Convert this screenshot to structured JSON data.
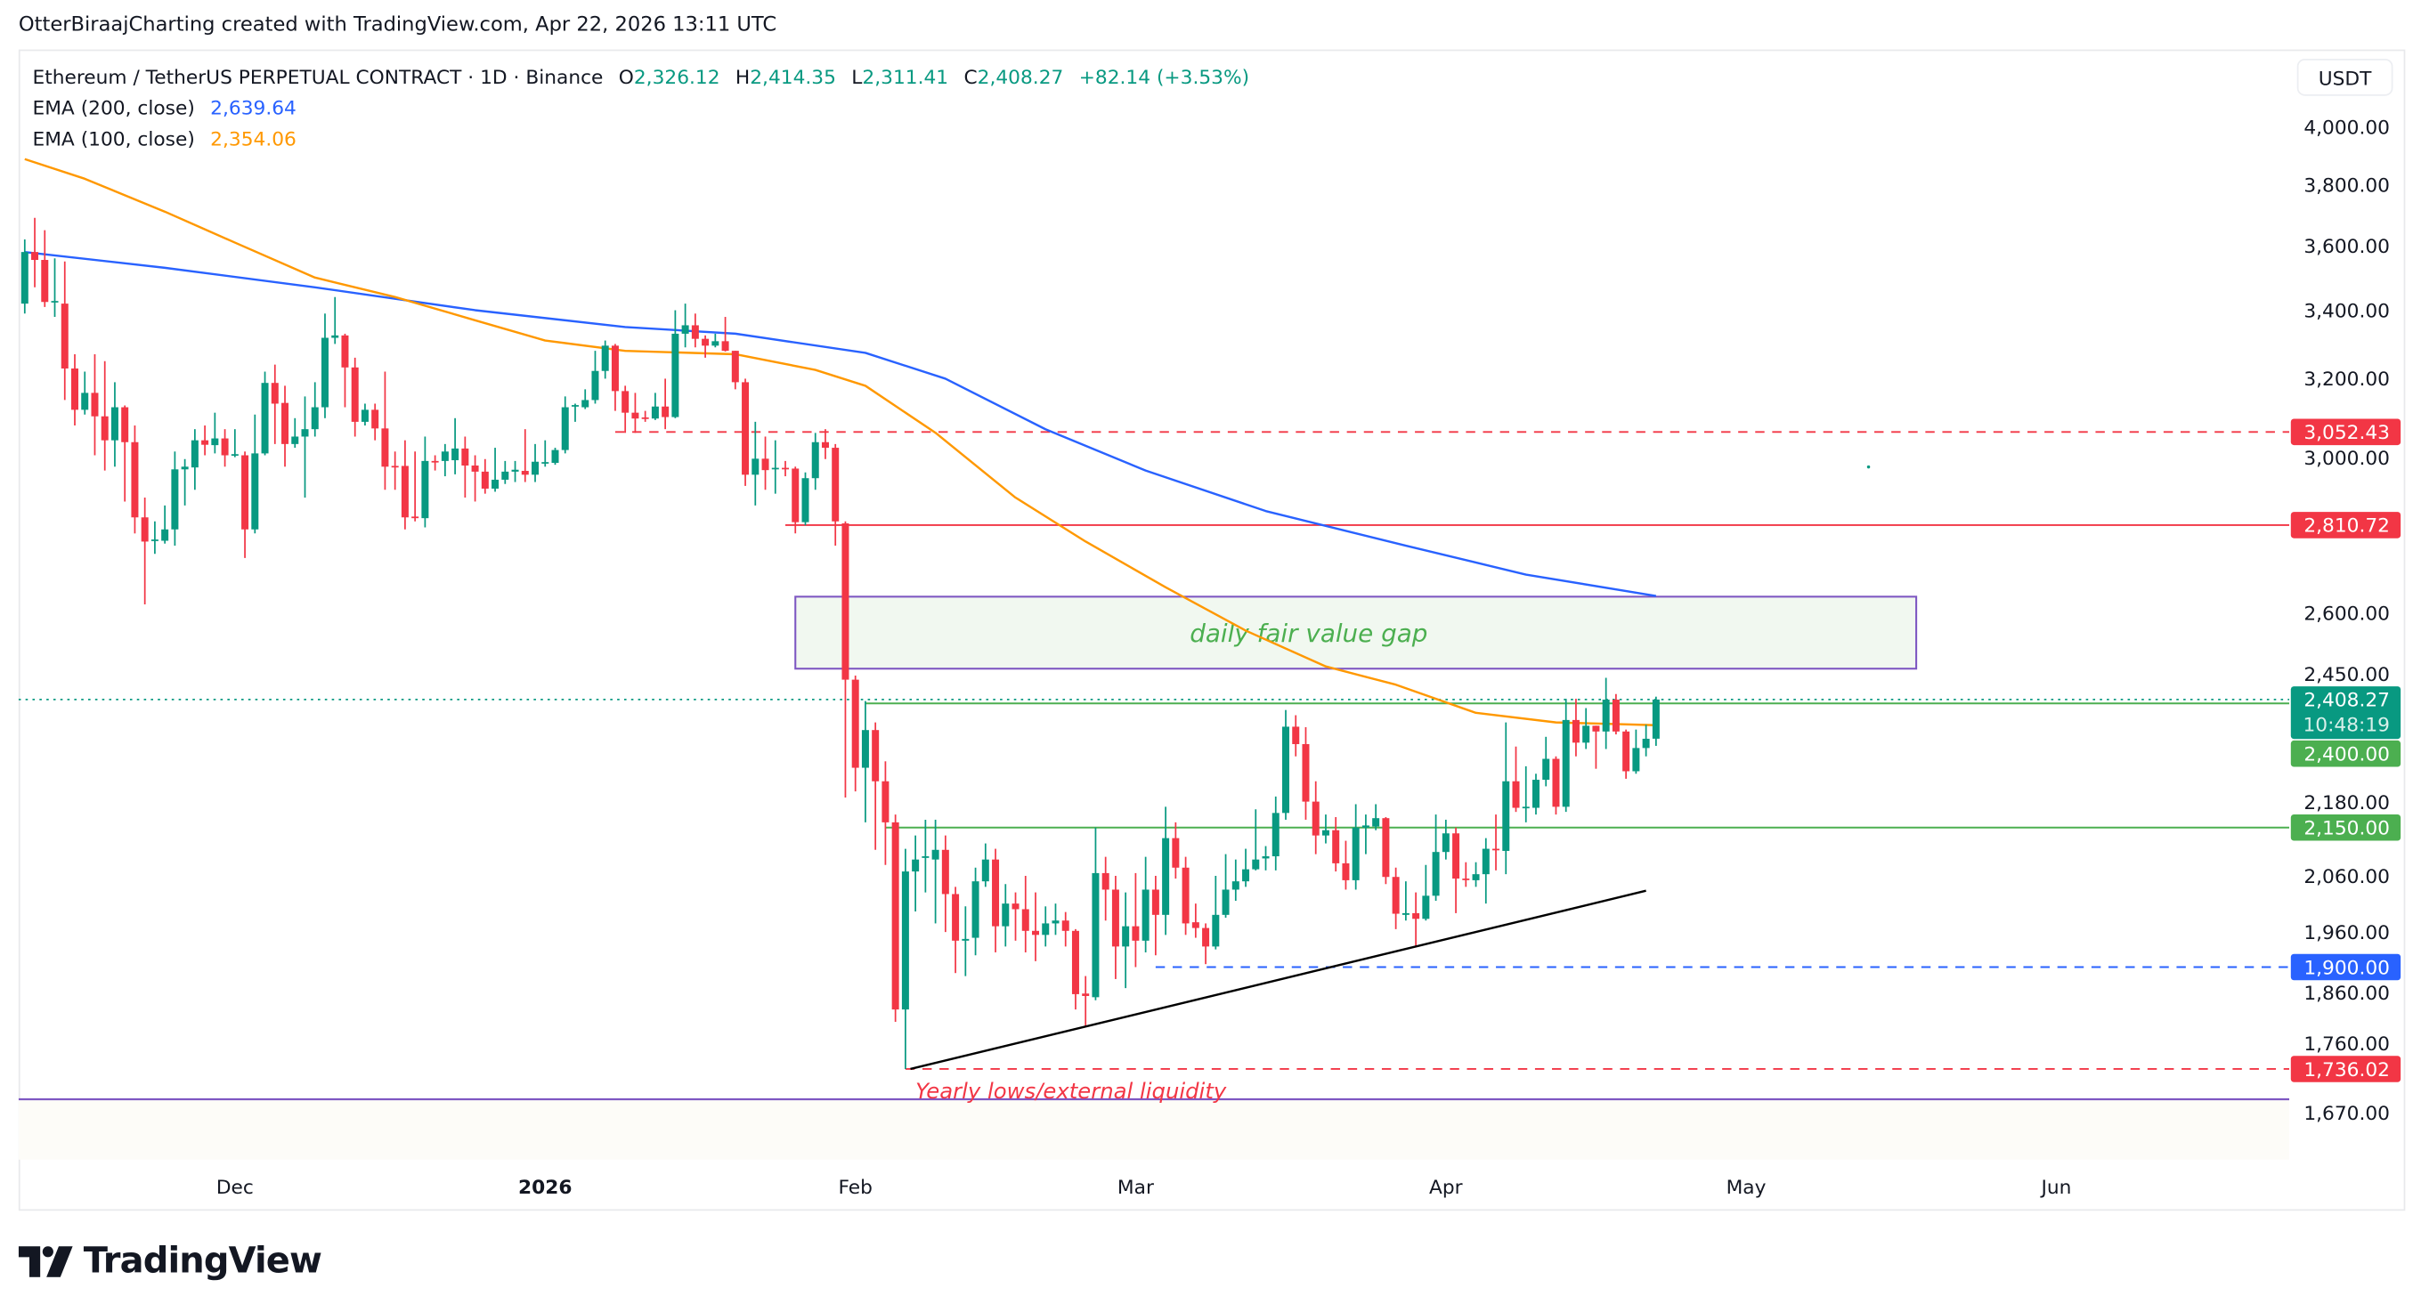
{
  "credit": "OtterBiraajCharting created with TradingView.com, Apr 22, 2026 13:11 UTC",
  "legend": {
    "symbol": "Ethereum / TetherUS PERPETUAL CONTRACT · 1D · Binance",
    "o_label": "O",
    "o": "2,326.12",
    "h_label": "H",
    "h": "2,414.35",
    "l_label": "L",
    "l": "2,311.41",
    "c_label": "C",
    "c": "2,408.27",
    "change": "+82.14 (+3.53%)",
    "ema200_label": "EMA (200, close)",
    "ema200_value": "2,639.64",
    "ema100_label": "EMA (100, close)",
    "ema100_value": "2,354.06"
  },
  "currency": "USDT",
  "logo_text": "TradingView",
  "colors": {
    "up": "#089981",
    "down": "#f23645",
    "ema200": "#2962ff",
    "ema100": "#ff9800",
    "fvg_border": "#7e57c2",
    "fvg_fill": "#f1f8f0",
    "fvg_text": "#4caf50",
    "level_green": "#4caf50",
    "level_red": "#f23645",
    "level_blue": "#2962ff"
  },
  "chart_data": {
    "type": "candlestick",
    "scale": "log",
    "ylim": [
      1670,
      4000
    ],
    "start_date": "2025-11-10",
    "end_date": "2026-04-22",
    "x_ticks": [
      {
        "label": "Dec",
        "day_index": 21,
        "bold": false
      },
      {
        "label": "2026",
        "day_index": 52,
        "bold": true
      },
      {
        "label": "Feb",
        "day_index": 83,
        "bold": false
      },
      {
        "label": "Mar",
        "day_index": 111,
        "bold": false
      },
      {
        "label": "Apr",
        "day_index": 142,
        "bold": false
      },
      {
        "label": "May",
        "day_index": 172,
        "bold": false
      },
      {
        "label": "Jun",
        "day_index": 203,
        "bold": false
      }
    ],
    "y_ticks": [
      {
        "value": 4000,
        "label": "4,000.00"
      },
      {
        "value": 3800,
        "label": "3,800.00"
      },
      {
        "value": 3600,
        "label": "3,600.00"
      },
      {
        "value": 3400,
        "label": "3,400.00"
      },
      {
        "value": 3200,
        "label": "3,200.00"
      },
      {
        "value": 3000,
        "label": "3,000.00"
      },
      {
        "value": 2600,
        "label": "2,600.00"
      },
      {
        "value": 2450,
        "label": "2,450.00"
      },
      {
        "value": 2180,
        "label": "2,180.00"
      },
      {
        "value": 2060,
        "label": "2,060.00"
      },
      {
        "value": 1960,
        "label": "1,960.00"
      },
      {
        "value": 1860,
        "label": "1,860.00"
      },
      {
        "value": 1760,
        "label": "1,760.00"
      },
      {
        "value": 1670,
        "label": "1,670.00"
      }
    ],
    "candles_ohlc": [
      [
        3420,
        3620,
        3390,
        3580
      ],
      [
        3580,
        3690,
        3470,
        3555
      ],
      [
        3555,
        3650,
        3410,
        3425
      ],
      [
        3425,
        3560,
        3380,
        3428
      ],
      [
        3420,
        3550,
        3140,
        3229
      ],
      [
        3229,
        3270,
        3070,
        3113
      ],
      [
        3113,
        3220,
        3100,
        3160
      ],
      [
        3160,
        3270,
        2990,
        3095
      ],
      [
        3095,
        3250,
        2950,
        3030
      ],
      [
        3030,
        3190,
        2960,
        3120
      ],
      [
        3120,
        3125,
        2870,
        3025
      ],
      [
        3025,
        3070,
        2790,
        2830
      ],
      [
        2830,
        2880,
        2620,
        2770
      ],
      [
        2772,
        2820,
        2740,
        2775
      ],
      [
        2772,
        2860,
        2765,
        2800
      ],
      [
        2800,
        3000,
        2760,
        2953
      ],
      [
        2953,
        2980,
        2860,
        2960
      ],
      [
        2958,
        3060,
        2900,
        3030
      ],
      [
        3030,
        3070,
        2990,
        3018
      ],
      [
        3017,
        3105,
        2995,
        3035
      ],
      [
        3035,
        3060,
        2960,
        2990
      ],
      [
        2990,
        3060,
        2985,
        2993
      ],
      [
        2990,
        3000,
        2730,
        2800
      ],
      [
        2800,
        3100,
        2790,
        2995
      ],
      [
        2995,
        3220,
        2990,
        3188
      ],
      [
        3188,
        3240,
        3020,
        3130
      ],
      [
        3132,
        3180,
        2960,
        3020
      ],
      [
        3020,
        3090,
        3010,
        3040
      ],
      [
        3040,
        3150,
        2880,
        3060
      ],
      [
        3060,
        3190,
        3040,
        3120
      ],
      [
        3120,
        3390,
        3090,
        3318
      ],
      [
        3318,
        3440,
        3300,
        3325
      ],
      [
        3325,
        3330,
        3120,
        3232
      ],
      [
        3232,
        3260,
        3040,
        3080
      ],
      [
        3080,
        3130,
        3070,
        3113
      ],
      [
        3113,
        3130,
        3030,
        3062
      ],
      [
        3062,
        3220,
        2900,
        2960
      ],
      [
        2962,
        3000,
        2900,
        2958
      ],
      [
        2962,
        3030,
        2800,
        2830
      ],
      [
        2832,
        3000,
        2820,
        2828
      ],
      [
        2828,
        3040,
        2805,
        2975
      ],
      [
        2975,
        2990,
        2950,
        2973
      ],
      [
        2975,
        3020,
        2935,
        3000
      ],
      [
        2977,
        3090,
        2940,
        3008
      ],
      [
        3008,
        3040,
        2880,
        2963
      ],
      [
        2963,
        2990,
        2870,
        2947
      ],
      [
        2947,
        2980,
        2890,
        2903
      ],
      [
        2903,
        3010,
        2895,
        2926
      ],
      [
        2926,
        2975,
        2915,
        2947
      ],
      [
        2947,
        2975,
        2920,
        2952
      ],
      [
        2949,
        3060,
        2920,
        2939
      ],
      [
        2939,
        3020,
        2920,
        2973
      ],
      [
        2970,
        3030,
        2960,
        2972
      ],
      [
        2970,
        3010,
        2965,
        3004
      ],
      [
        3004,
        3150,
        2995,
        3120
      ],
      [
        3122,
        3130,
        3080,
        3126
      ],
      [
        3120,
        3170,
        3115,
        3140
      ],
      [
        3140,
        3280,
        3130,
        3222
      ],
      [
        3222,
        3310,
        3200,
        3295
      ],
      [
        3295,
        3300,
        3110,
        3165
      ],
      [
        3165,
        3180,
        3050,
        3105
      ],
      [
        3105,
        3160,
        3050,
        3089
      ],
      [
        3092,
        3110,
        3080,
        3090
      ],
      [
        3089,
        3160,
        3085,
        3122
      ],
      [
        3122,
        3200,
        3060,
        3093
      ],
      [
        3093,
        3400,
        3090,
        3330
      ],
      [
        3330,
        3420,
        3290,
        3355
      ],
      [
        3355,
        3390,
        3290,
        3315
      ],
      [
        3315,
        3325,
        3260,
        3295
      ],
      [
        3295,
        3330,
        3290,
        3308
      ],
      [
        3308,
        3380,
        3278,
        3280
      ],
      [
        3280,
        3280,
        3170,
        3190
      ],
      [
        3190,
        3200,
        2910,
        2939
      ],
      [
        2939,
        3080,
        2860,
        2981
      ],
      [
        2981,
        3040,
        2900,
        2951
      ],
      [
        2955,
        3030,
        2890,
        2957
      ],
      [
        2957,
        2975,
        2935,
        2955
      ],
      [
        2955,
        2960,
        2790,
        2818
      ],
      [
        2818,
        2945,
        2810,
        2930
      ],
      [
        2930,
        3050,
        2900,
        3025
      ],
      [
        3025,
        3060,
        2980,
        3010
      ],
      [
        3010,
        3020,
        2760,
        2820
      ],
      [
        2815,
        2820,
        2208,
        2451
      ],
      [
        2451,
        2460,
        2220,
        2267
      ],
      [
        2267,
        2405,
        2160,
        2344
      ],
      [
        2344,
        2360,
        2108,
        2240
      ],
      [
        2240,
        2280,
        2080,
        2160
      ],
      [
        2160,
        2175,
        1810,
        1830
      ],
      [
        1830,
        2110,
        1736,
        2068
      ],
      [
        2068,
        2135,
        1996,
        2090
      ],
      [
        2093,
        2165,
        2030,
        2096
      ],
      [
        2090,
        2165,
        1975,
        2108
      ],
      [
        2108,
        2135,
        1960,
        2027
      ],
      [
        2027,
        2040,
        1890,
        1945
      ],
      [
        1945,
        2005,
        1885,
        1948
      ],
      [
        1950,
        2075,
        1920,
        2050
      ],
      [
        2050,
        2120,
        2040,
        2090
      ],
      [
        2090,
        2110,
        1925,
        1970
      ],
      [
        1970,
        2045,
        1935,
        2010
      ],
      [
        2010,
        2030,
        1945,
        2000
      ],
      [
        2000,
        2060,
        1925,
        1962
      ],
      [
        1962,
        2030,
        1910,
        1955
      ],
      [
        1955,
        2005,
        1935,
        1975
      ],
      [
        1975,
        2010,
        1955,
        1980
      ],
      [
        1980,
        1995,
        1935,
        1962
      ],
      [
        1962,
        1965,
        1830,
        1855
      ],
      [
        1856,
        1885,
        1803,
        1852
      ],
      [
        1850,
        2150,
        1845,
        2065
      ],
      [
        2065,
        2095,
        1980,
        2035
      ],
      [
        2035,
        2060,
        1880,
        1935
      ],
      [
        1935,
        2030,
        1865,
        1970
      ],
      [
        1970,
        2065,
        1900,
        1945
      ],
      [
        1945,
        2095,
        1925,
        2035
      ],
      [
        2035,
        2060,
        1920,
        1990
      ],
      [
        1990,
        2190,
        1955,
        2130
      ],
      [
        2130,
        2160,
        2055,
        2075
      ],
      [
        2075,
        2095,
        1955,
        1975
      ],
      [
        1977,
        2010,
        1950,
        1967
      ],
      [
        1967,
        1975,
        1905,
        1935
      ],
      [
        1935,
        2060,
        1930,
        1990
      ],
      [
        1990,
        2100,
        1985,
        2035
      ],
      [
        2035,
        2090,
        2015,
        2050
      ],
      [
        2050,
        2110,
        2040,
        2072
      ],
      [
        2072,
        2185,
        2070,
        2090
      ],
      [
        2092,
        2115,
        2070,
        2096
      ],
      [
        2096,
        2210,
        2070,
        2178
      ],
      [
        2178,
        2386,
        2165,
        2351
      ],
      [
        2351,
        2375,
        2290,
        2315
      ],
      [
        2315,
        2350,
        2165,
        2200
      ],
      [
        2200,
        2240,
        2100,
        2135
      ],
      [
        2135,
        2175,
        2120,
        2145
      ],
      [
        2145,
        2170,
        2068,
        2083
      ],
      [
        2083,
        2125,
        2035,
        2052
      ],
      [
        2052,
        2195,
        2035,
        2150
      ],
      [
        2150,
        2175,
        2100,
        2154
      ],
      [
        2152,
        2195,
        2145,
        2168
      ],
      [
        2168,
        2170,
        2045,
        2058
      ],
      [
        2058,
        2075,
        1965,
        1992
      ],
      [
        1990,
        2050,
        1980,
        1993
      ],
      [
        1993,
        2030,
        1935,
        1983
      ],
      [
        1983,
        2080,
        1980,
        2024
      ],
      [
        2024,
        2175,
        2015,
        2104
      ],
      [
        2104,
        2165,
        2090,
        2139
      ],
      [
        2139,
        2150,
        1993,
        2055
      ],
      [
        2055,
        2085,
        2040,
        2054
      ],
      [
        2052,
        2085,
        2040,
        2063
      ],
      [
        2063,
        2130,
        2010,
        2110
      ],
      [
        2110,
        2175,
        2070,
        2108
      ],
      [
        2106,
        2360,
        2063,
        2240
      ],
      [
        2240,
        2310,
        2180,
        2188
      ],
      [
        2188,
        2270,
        2160,
        2190
      ],
      [
        2188,
        2255,
        2175,
        2243
      ],
      [
        2243,
        2330,
        2230,
        2285
      ],
      [
        2285,
        2290,
        2175,
        2190
      ],
      [
        2190,
        2410,
        2180,
        2365
      ],
      [
        2365,
        2410,
        2290,
        2318
      ],
      [
        2318,
        2390,
        2305,
        2353
      ],
      [
        2353,
        2353,
        2265,
        2341
      ],
      [
        2341,
        2455,
        2305,
        2408
      ],
      [
        2408,
        2420,
        2335,
        2341
      ],
      [
        2341,
        2345,
        2245,
        2260
      ],
      [
        2260,
        2345,
        2255,
        2307
      ],
      [
        2307,
        2355,
        2290,
        2326
      ],
      [
        2326.12,
        2414.35,
        2311.41,
        2408.27
      ]
    ],
    "series": [
      {
        "name": "EMA (200, close)",
        "points": [
          [
            0,
            3580
          ],
          [
            14,
            3530
          ],
          [
            29,
            3470
          ],
          [
            45,
            3400
          ],
          [
            60,
            3350
          ],
          [
            71,
            3330
          ],
          [
            84,
            3274
          ],
          [
            92,
            3200
          ],
          [
            102,
            3060
          ],
          [
            112,
            2950
          ],
          [
            124,
            2846
          ],
          [
            138,
            2760
          ],
          [
            150,
            2690
          ],
          [
            163,
            2639.64
          ]
        ]
      },
      {
        "name": "EMA (100, close)",
        "points": [
          [
            0,
            3887
          ],
          [
            6,
            3820
          ],
          [
            14,
            3710
          ],
          [
            21,
            3610
          ],
          [
            29,
            3500
          ],
          [
            37,
            3440
          ],
          [
            45,
            3370
          ],
          [
            52,
            3310
          ],
          [
            60,
            3280
          ],
          [
            71,
            3270
          ],
          [
            79,
            3225
          ],
          [
            84,
            3180
          ],
          [
            91,
            3050
          ],
          [
            99,
            2880
          ],
          [
            106,
            2770
          ],
          [
            114,
            2660
          ],
          [
            122,
            2560
          ],
          [
            130,
            2480
          ],
          [
            137,
            2440
          ],
          [
            145,
            2380
          ],
          [
            153,
            2360
          ],
          [
            163,
            2354.06
          ]
        ]
      }
    ],
    "levels": [
      {
        "name": "level-3052",
        "value": 3052.43,
        "label": "3,052.43",
        "style": "dashed",
        "color": "#f23645",
        "from_day": 59
      },
      {
        "name": "level-2810",
        "value": 2810.72,
        "label": "2,810.72",
        "style": "solid",
        "color": "#f23645",
        "from_day": 76
      },
      {
        "name": "level-2400",
        "value": 2400.0,
        "label": "2,400.00",
        "style": "solid",
        "color": "#4caf50",
        "from_day": 84
      },
      {
        "name": "level-2150",
        "value": 2150.0,
        "label": "2,150.00",
        "style": "solid",
        "color": "#4caf50",
        "from_day": 86
      },
      {
        "name": "level-1900",
        "value": 1900.0,
        "label": "1,900.00",
        "style": "dashed",
        "color": "#2962ff",
        "from_day": 113
      },
      {
        "name": "level-1736",
        "value": 1736.02,
        "label": "1,736.02",
        "style": "dashed",
        "color": "#f23645",
        "from_day": 88
      }
    ],
    "last_price": {
      "value": 2408.27,
      "label": "2,408.27",
      "countdown": "10:48:19"
    },
    "fvg": {
      "top": 2638,
      "bottom": 2475,
      "from_day": 77,
      "to_day": 189,
      "label": "daily fair value gap"
    },
    "trendline": {
      "from": [
        88.5,
        1736
      ],
      "to": [
        162,
        2033
      ]
    },
    "range_floor": {
      "value": 1690
    },
    "yearly_low_note": {
      "label": "Yearly lows/external liquidity",
      "day": 89
    }
  }
}
